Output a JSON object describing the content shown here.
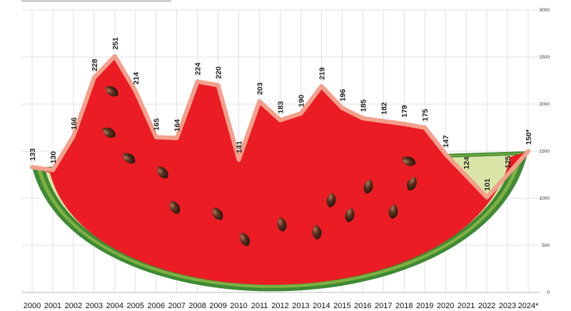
{
  "chart_data": {
    "type": "line",
    "title": "",
    "xlabel": "",
    "ylabel": "",
    "categories": [
      "2000",
      "2001",
      "2002",
      "2003",
      "2004",
      "2005",
      "2006",
      "2007",
      "2008",
      "2009",
      "2010",
      "2011",
      "2012",
      "2013",
      "2014",
      "2015",
      "2016",
      "2017",
      "2018",
      "2019",
      "2020",
      "2021",
      "2022",
      "2023",
      "2024*"
    ],
    "series": [
      {
        "values": [
          133,
          130,
          166,
          228,
          251,
          214,
          165,
          164,
          224,
          220,
          141,
          203,
          183,
          190,
          219,
          196,
          185,
          182,
          179,
          175,
          147,
          124,
          101,
          125,
          150
        ],
        "labels": [
          "133",
          "130",
          "166",
          "228",
          "251",
          "214",
          "165",
          "164",
          "224",
          "220",
          "141",
          "203",
          "183",
          "190",
          "219",
          "196",
          "185",
          "182",
          "179",
          "175",
          "147",
          "124",
          "101",
          "125",
          "150*"
        ]
      }
    ],
    "y_ticks": [
      "0",
      "500",
      "1000",
      "1500",
      "2000",
      "2500",
      "3000"
    ],
    "ylim": [
      0,
      300
    ],
    "grid": true,
    "legend": "none",
    "colors": {
      "flesh": "#ec1c24",
      "line": "#f2a08c",
      "rind_pale": "#d9e6a8",
      "rind_light": "#7fb042",
      "rind_dark": "#3f8a34",
      "seed": "#5a3322"
    }
  }
}
